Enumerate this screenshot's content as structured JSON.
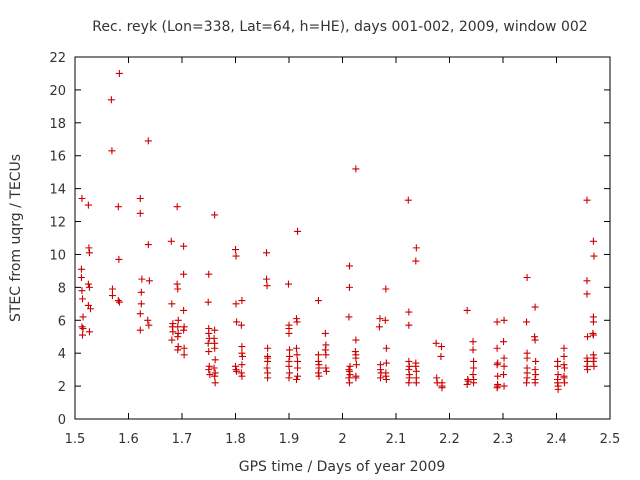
{
  "chart_data": {
    "type": "scatter",
    "title": "Rec. reyk (Lon=338, Lat=64, h=HE), days 001-002, 2009, window 002",
    "xlabel": "GPS time / Days of year 2009",
    "ylabel": "STEC from uqrg / TECUs",
    "xlim": [
      1.5,
      2.5
    ],
    "ylim": [
      0,
      22
    ],
    "x_ticks": [
      "1.5",
      "1.6",
      "1.7",
      "1.8",
      "1.9",
      "2",
      "2.1",
      "2.2",
      "2.3",
      "2.4",
      "2.5"
    ],
    "y_ticks": [
      "0",
      "2",
      "4",
      "6",
      "8",
      "10",
      "12",
      "14",
      "16",
      "18",
      "20",
      "22"
    ],
    "grid": false,
    "marker": "+",
    "color": "#cc0000",
    "series": [
      {
        "name": "STEC",
        "points": [
          [
            1.513,
            13.4
          ],
          [
            1.512,
            9.1
          ],
          [
            1.512,
            8.6
          ],
          [
            1.513,
            7.8
          ],
          [
            1.514,
            7.3
          ],
          [
            1.515,
            6.2
          ],
          [
            1.513,
            5.6
          ],
          [
            1.515,
            5.5
          ],
          [
            1.514,
            5.1
          ],
          [
            1.525,
            13.0
          ],
          [
            1.526,
            10.4
          ],
          [
            1.527,
            10.1
          ],
          [
            1.525,
            8.2
          ],
          [
            1.527,
            8.0
          ],
          [
            1.525,
            6.9
          ],
          [
            1.529,
            6.7
          ],
          [
            1.527,
            5.3
          ],
          [
            1.568,
            19.4
          ],
          [
            1.569,
            16.3
          ],
          [
            1.57,
            7.9
          ],
          [
            1.57,
            7.5
          ],
          [
            1.583,
            21.0
          ],
          [
            1.581,
            12.9
          ],
          [
            1.582,
            9.7
          ],
          [
            1.581,
            7.2
          ],
          [
            1.583,
            7.1
          ],
          [
            1.622,
            13.4
          ],
          [
            1.622,
            12.5
          ],
          [
            1.625,
            8.5
          ],
          [
            1.624,
            7.7
          ],
          [
            1.624,
            7.0
          ],
          [
            1.622,
            6.4
          ],
          [
            1.622,
            5.4
          ],
          [
            1.637,
            16.9
          ],
          [
            1.637,
            10.6
          ],
          [
            1.639,
            8.4
          ],
          [
            1.636,
            6.0
          ],
          [
            1.638,
            5.7
          ],
          [
            1.68,
            10.8
          ],
          [
            1.681,
            7.0
          ],
          [
            1.683,
            5.8
          ],
          [
            1.682,
            5.6
          ],
          [
            1.683,
            5.3
          ],
          [
            1.681,
            4.8
          ],
          [
            1.691,
            12.9
          ],
          [
            1.691,
            8.2
          ],
          [
            1.692,
            7.9
          ],
          [
            1.693,
            6.0
          ],
          [
            1.692,
            5.6
          ],
          [
            1.693,
            5.2
          ],
          [
            1.692,
            5.0
          ],
          [
            1.693,
            4.4
          ],
          [
            1.692,
            4.2
          ],
          [
            1.703,
            10.5
          ],
          [
            1.703,
            8.8
          ],
          [
            1.703,
            6.6
          ],
          [
            1.704,
            5.6
          ],
          [
            1.703,
            5.4
          ],
          [
            1.704,
            4.3
          ],
          [
            1.704,
            3.9
          ],
          [
            1.75,
            8.8
          ],
          [
            1.749,
            7.1
          ],
          [
            1.75,
            5.5
          ],
          [
            1.75,
            5.2
          ],
          [
            1.751,
            4.9
          ],
          [
            1.749,
            4.6
          ],
          [
            1.75,
            4.1
          ],
          [
            1.751,
            3.2
          ],
          [
            1.75,
            3.0
          ],
          [
            1.752,
            2.7
          ],
          [
            1.761,
            12.4
          ],
          [
            1.761,
            5.4
          ],
          [
            1.76,
            4.9
          ],
          [
            1.761,
            4.6
          ],
          [
            1.761,
            4.3
          ],
          [
            1.762,
            3.6
          ],
          [
            1.76,
            3.1
          ],
          [
            1.762,
            2.8
          ],
          [
            1.761,
            2.6
          ],
          [
            1.762,
            2.2
          ],
          [
            1.8,
            10.3
          ],
          [
            1.801,
            9.9
          ],
          [
            1.801,
            7.0
          ],
          [
            1.802,
            5.9
          ],
          [
            1.8,
            3.2
          ],
          [
            1.801,
            3.0
          ],
          [
            1.802,
            2.9
          ],
          [
            1.812,
            7.2
          ],
          [
            1.811,
            5.7
          ],
          [
            1.812,
            4.4
          ],
          [
            1.812,
            4.0
          ],
          [
            1.813,
            3.8
          ],
          [
            1.812,
            3.3
          ],
          [
            1.811,
            2.8
          ],
          [
            1.812,
            2.6
          ],
          [
            1.858,
            10.1
          ],
          [
            1.858,
            8.5
          ],
          [
            1.859,
            8.1
          ],
          [
            1.86,
            4.3
          ],
          [
            1.86,
            3.8
          ],
          [
            1.86,
            3.7
          ],
          [
            1.86,
            3.5
          ],
          [
            1.859,
            3.1
          ],
          [
            1.86,
            2.8
          ],
          [
            1.86,
            2.5
          ],
          [
            1.899,
            8.2
          ],
          [
            1.9,
            5.7
          ],
          [
            1.9,
            5.5
          ],
          [
            1.9,
            5.2
          ],
          [
            1.901,
            4.2
          ],
          [
            1.901,
            3.8
          ],
          [
            1.9,
            3.5
          ],
          [
            1.9,
            3.2
          ],
          [
            1.901,
            2.8
          ],
          [
            1.9,
            2.5
          ],
          [
            1.916,
            11.4
          ],
          [
            1.914,
            6.1
          ],
          [
            1.915,
            5.9
          ],
          [
            1.914,
            4.3
          ],
          [
            1.915,
            3.9
          ],
          [
            1.916,
            3.5
          ],
          [
            1.916,
            3.1
          ],
          [
            1.916,
            2.6
          ],
          [
            1.914,
            2.4
          ],
          [
            1.955,
            7.2
          ],
          [
            1.955,
            3.9
          ],
          [
            1.955,
            3.5
          ],
          [
            1.956,
            3.3
          ],
          [
            1.956,
            3.1
          ],
          [
            1.955,
            2.8
          ],
          [
            1.956,
            2.6
          ],
          [
            1.968,
            5.2
          ],
          [
            1.969,
            4.5
          ],
          [
            1.968,
            4.2
          ],
          [
            1.969,
            3.9
          ],
          [
            1.969,
            3.1
          ],
          [
            1.97,
            2.9
          ],
          [
            2.013,
            9.3
          ],
          [
            2.013,
            8.0
          ],
          [
            2.012,
            6.2
          ],
          [
            2.014,
            3.2
          ],
          [
            2.012,
            3.0
          ],
          [
            2.013,
            2.9
          ],
          [
            2.014,
            2.7
          ],
          [
            2.012,
            2.5
          ],
          [
            2.013,
            2.2
          ],
          [
            2.025,
            15.2
          ],
          [
            2.025,
            4.8
          ],
          [
            2.024,
            4.1
          ],
          [
            2.025,
            3.9
          ],
          [
            2.025,
            3.7
          ],
          [
            2.026,
            3.3
          ],
          [
            2.025,
            2.6
          ],
          [
            2.025,
            2.5
          ],
          [
            2.07,
            6.1
          ],
          [
            2.069,
            5.6
          ],
          [
            2.071,
            3.3
          ],
          [
            2.071,
            3.0
          ],
          [
            2.072,
            2.8
          ],
          [
            2.071,
            2.5
          ],
          [
            2.081,
            7.9
          ],
          [
            2.08,
            6.0
          ],
          [
            2.082,
            4.3
          ],
          [
            2.082,
            3.4
          ],
          [
            2.081,
            2.8
          ],
          [
            2.081,
            2.6
          ],
          [
            2.082,
            2.4
          ],
          [
            2.123,
            13.3
          ],
          [
            2.124,
            6.5
          ],
          [
            2.124,
            5.7
          ],
          [
            2.124,
            3.5
          ],
          [
            2.125,
            3.2
          ],
          [
            2.124,
            3.0
          ],
          [
            2.125,
            2.7
          ],
          [
            2.125,
            2.5
          ],
          [
            2.124,
            2.2
          ],
          [
            2.138,
            10.4
          ],
          [
            2.137,
            9.6
          ],
          [
            2.137,
            3.4
          ],
          [
            2.137,
            3.2
          ],
          [
            2.138,
            2.9
          ],
          [
            2.138,
            2.5
          ],
          [
            2.138,
            2.2
          ],
          [
            2.175,
            4.6
          ],
          [
            2.176,
            2.5
          ],
          [
            2.177,
            2.2
          ],
          [
            2.185,
            4.4
          ],
          [
            2.184,
            3.8
          ],
          [
            2.186,
            2.2
          ],
          [
            2.186,
            2.0
          ],
          [
            2.186,
            1.9
          ],
          [
            2.233,
            6.6
          ],
          [
            2.234,
            2.4
          ],
          [
            2.235,
            2.3
          ],
          [
            2.233,
            2.1
          ],
          [
            2.244,
            4.7
          ],
          [
            2.244,
            4.2
          ],
          [
            2.245,
            3.5
          ],
          [
            2.245,
            3.1
          ],
          [
            2.244,
            2.7
          ],
          [
            2.245,
            2.4
          ],
          [
            2.245,
            2.2
          ],
          [
            2.289,
            5.9
          ],
          [
            2.289,
            4.3
          ],
          [
            2.29,
            3.4
          ],
          [
            2.289,
            3.3
          ],
          [
            2.29,
            2.6
          ],
          [
            2.29,
            2.1
          ],
          [
            2.29,
            2.0
          ],
          [
            2.289,
            1.9
          ],
          [
            2.302,
            6.0
          ],
          [
            2.301,
            4.7
          ],
          [
            2.302,
            3.7
          ],
          [
            2.302,
            3.2
          ],
          [
            2.301,
            2.7
          ],
          [
            2.302,
            2.0
          ],
          [
            2.345,
            8.6
          ],
          [
            2.344,
            5.9
          ],
          [
            2.345,
            4.0
          ],
          [
            2.345,
            3.7
          ],
          [
            2.345,
            3.1
          ],
          [
            2.345,
            2.8
          ],
          [
            2.345,
            2.5
          ],
          [
            2.344,
            2.2
          ],
          [
            2.36,
            6.8
          ],
          [
            2.359,
            5.0
          ],
          [
            2.36,
            4.8
          ],
          [
            2.361,
            3.5
          ],
          [
            2.36,
            3.0
          ],
          [
            2.361,
            2.7
          ],
          [
            2.36,
            2.4
          ],
          [
            2.36,
            2.2
          ],
          [
            2.402,
            3.5
          ],
          [
            2.402,
            3.2
          ],
          [
            2.403,
            2.7
          ],
          [
            2.402,
            2.4
          ],
          [
            2.402,
            2.2
          ],
          [
            2.403,
            2.0
          ],
          [
            2.403,
            1.8
          ],
          [
            2.414,
            4.3
          ],
          [
            2.414,
            3.8
          ],
          [
            2.414,
            3.3
          ],
          [
            2.415,
            3.1
          ],
          [
            2.414,
            2.6
          ],
          [
            2.414,
            2.5
          ],
          [
            2.415,
            2.2
          ],
          [
            2.457,
            13.3
          ],
          [
            2.457,
            8.4
          ],
          [
            2.457,
            7.6
          ],
          [
            2.458,
            5.0
          ],
          [
            2.457,
            3.7
          ],
          [
            2.458,
            3.5
          ],
          [
            2.457,
            3.2
          ],
          [
            2.458,
            3.0
          ],
          [
            2.469,
            10.8
          ],
          [
            2.47,
            9.9
          ],
          [
            2.469,
            6.2
          ],
          [
            2.469,
            5.9
          ],
          [
            2.468,
            5.2
          ],
          [
            2.469,
            5.1
          ],
          [
            2.469,
            3.9
          ],
          [
            2.47,
            3.7
          ],
          [
            2.469,
            3.5
          ],
          [
            2.47,
            3.2
          ]
        ]
      }
    ]
  }
}
